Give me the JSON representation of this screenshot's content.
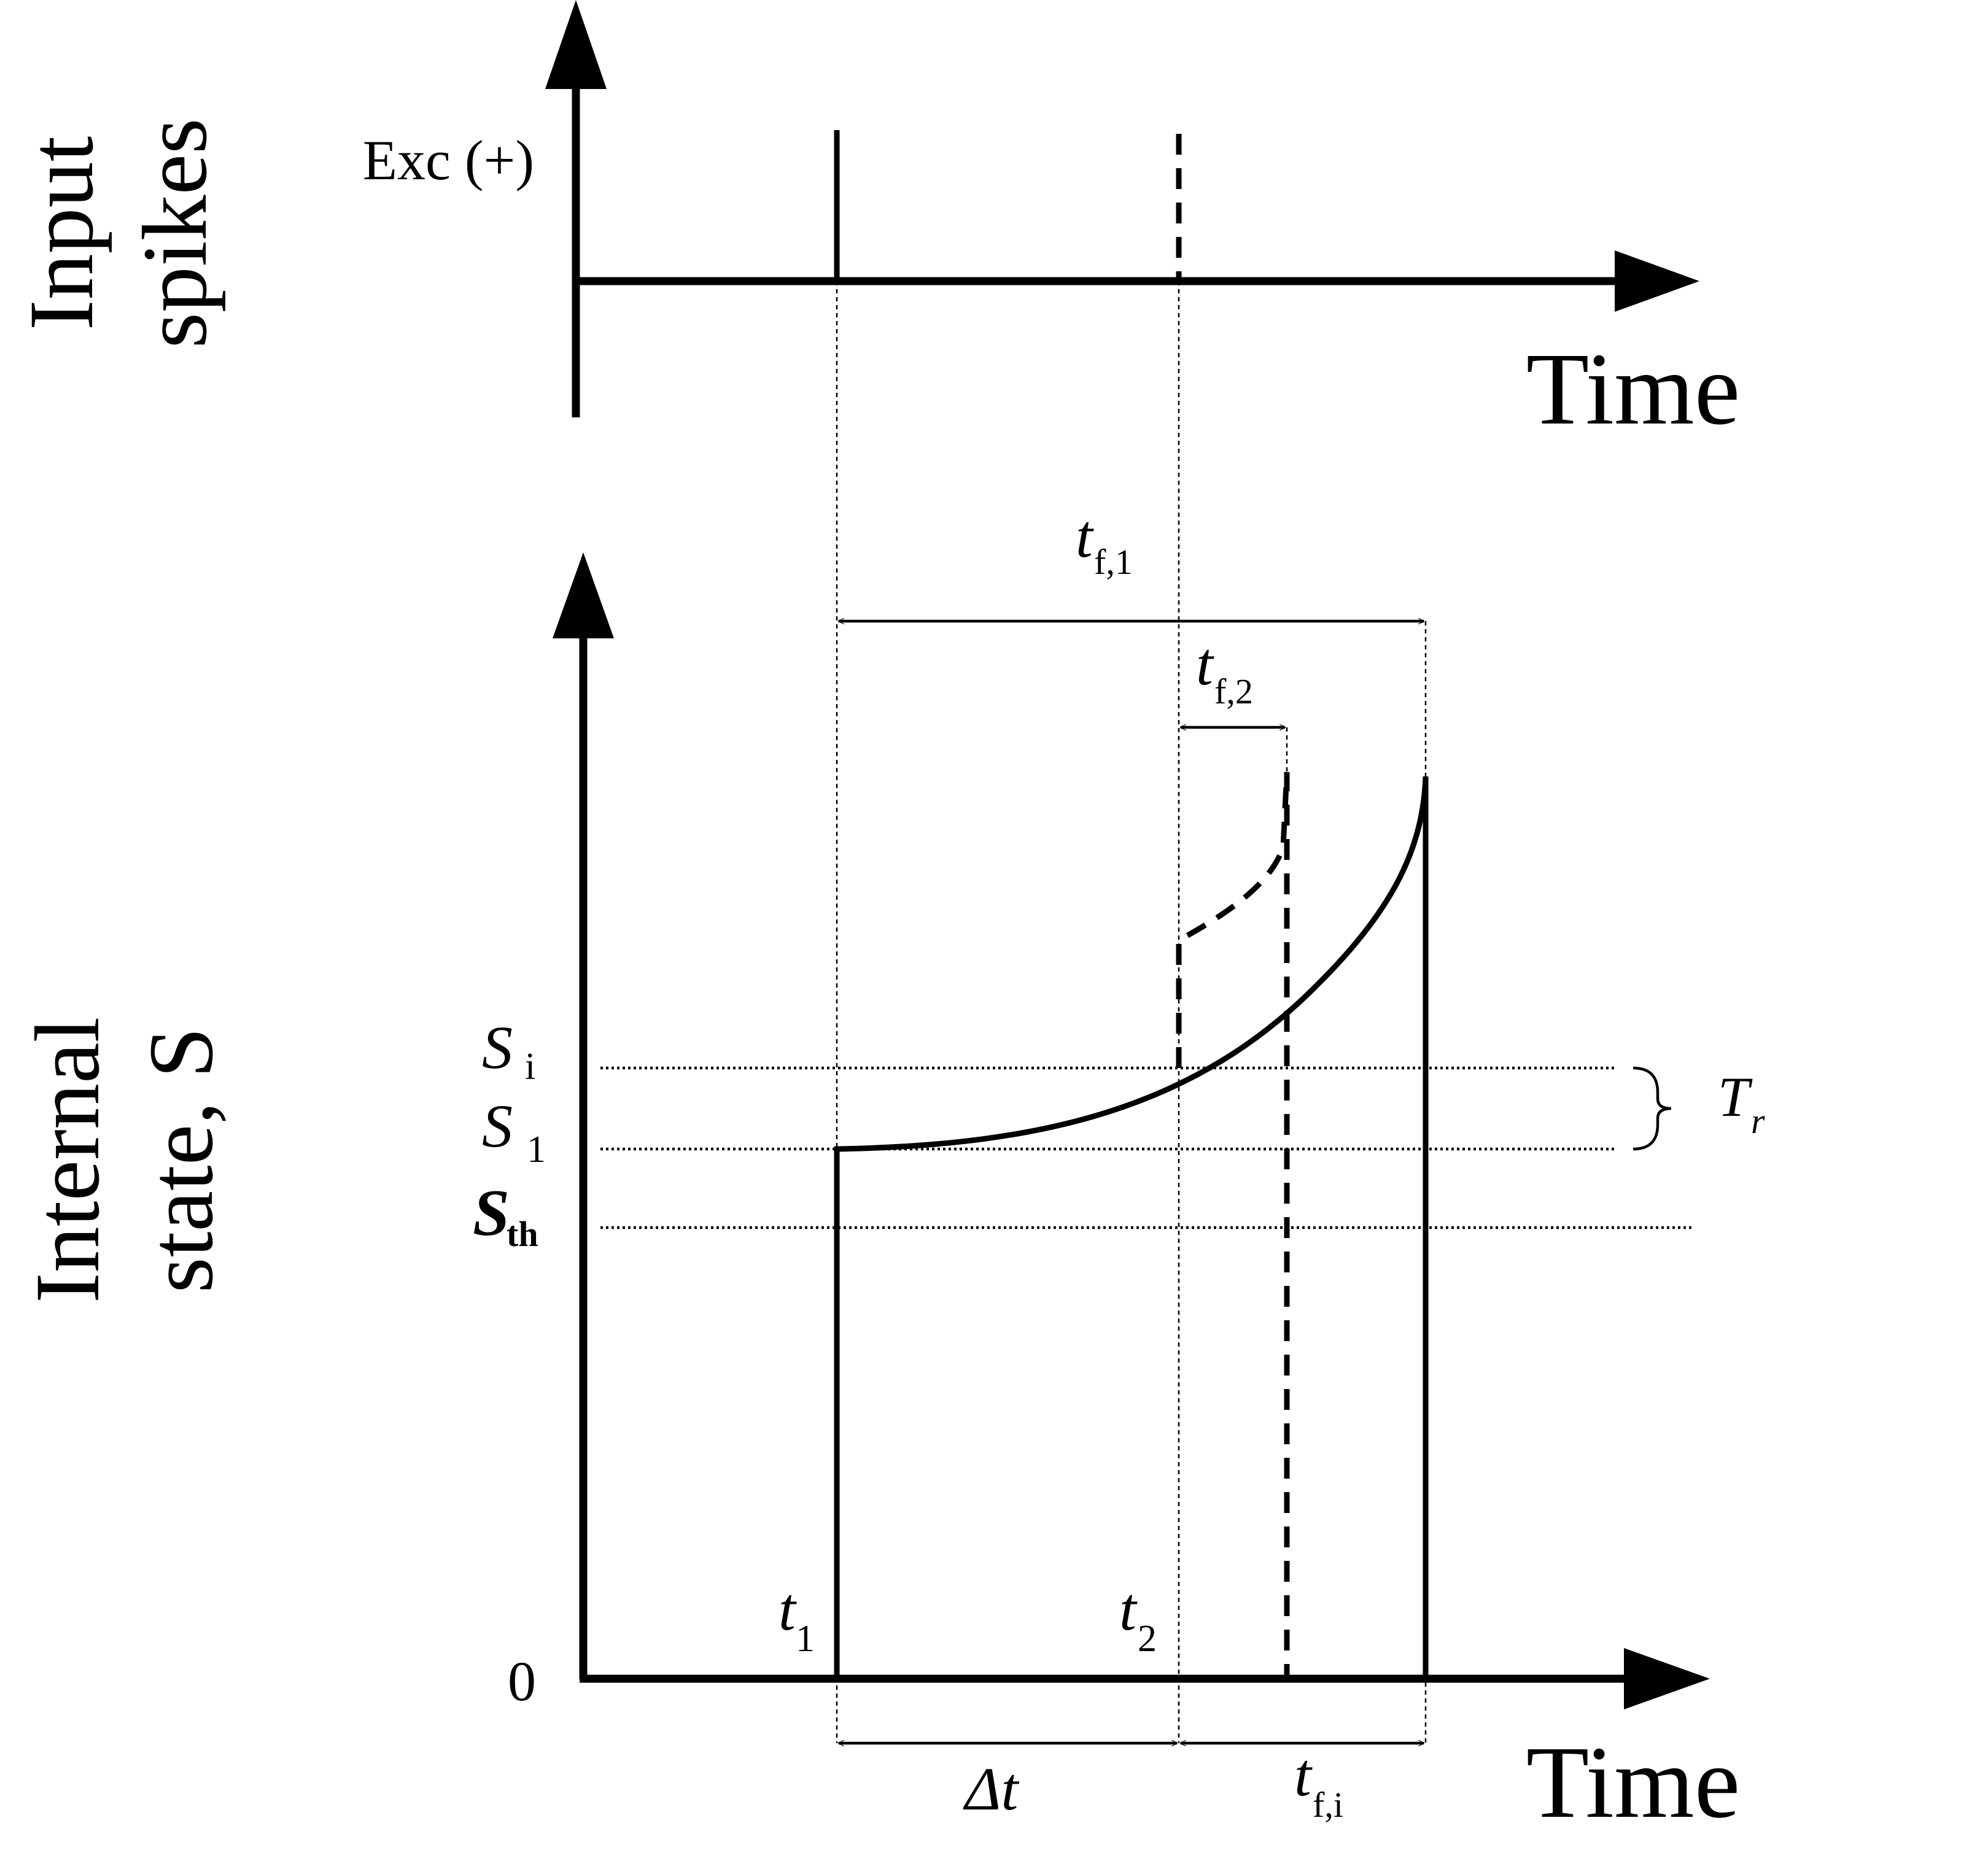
{
  "top_panel": {
    "ylabel_line1": "Input",
    "ylabel_line2": "spikes",
    "exc_label": "Exc (+)",
    "xlabel": "Time"
  },
  "bottom_panel": {
    "ylabel_line1": "Internal",
    "ylabel_line2": "state, S",
    "xlabel": "Time",
    "zero_label": "0",
    "s_i": {
      "main": "S",
      "sub": "i"
    },
    "s_1": {
      "main": "S",
      "sub": "1"
    },
    "s_th": {
      "main": "S",
      "sub": "th"
    },
    "t_r": {
      "main": "T",
      "sub": "r"
    },
    "t_1": {
      "main": "t",
      "sub": "1"
    },
    "t_2": {
      "main": "t",
      "sub": "2"
    },
    "t_f1": {
      "main": "t",
      "sub": "f,1"
    },
    "t_f2": {
      "main": "t",
      "sub": "f,2"
    },
    "t_fi": {
      "main": "t",
      "sub": "f,i"
    },
    "delta_t": "Δt"
  }
}
